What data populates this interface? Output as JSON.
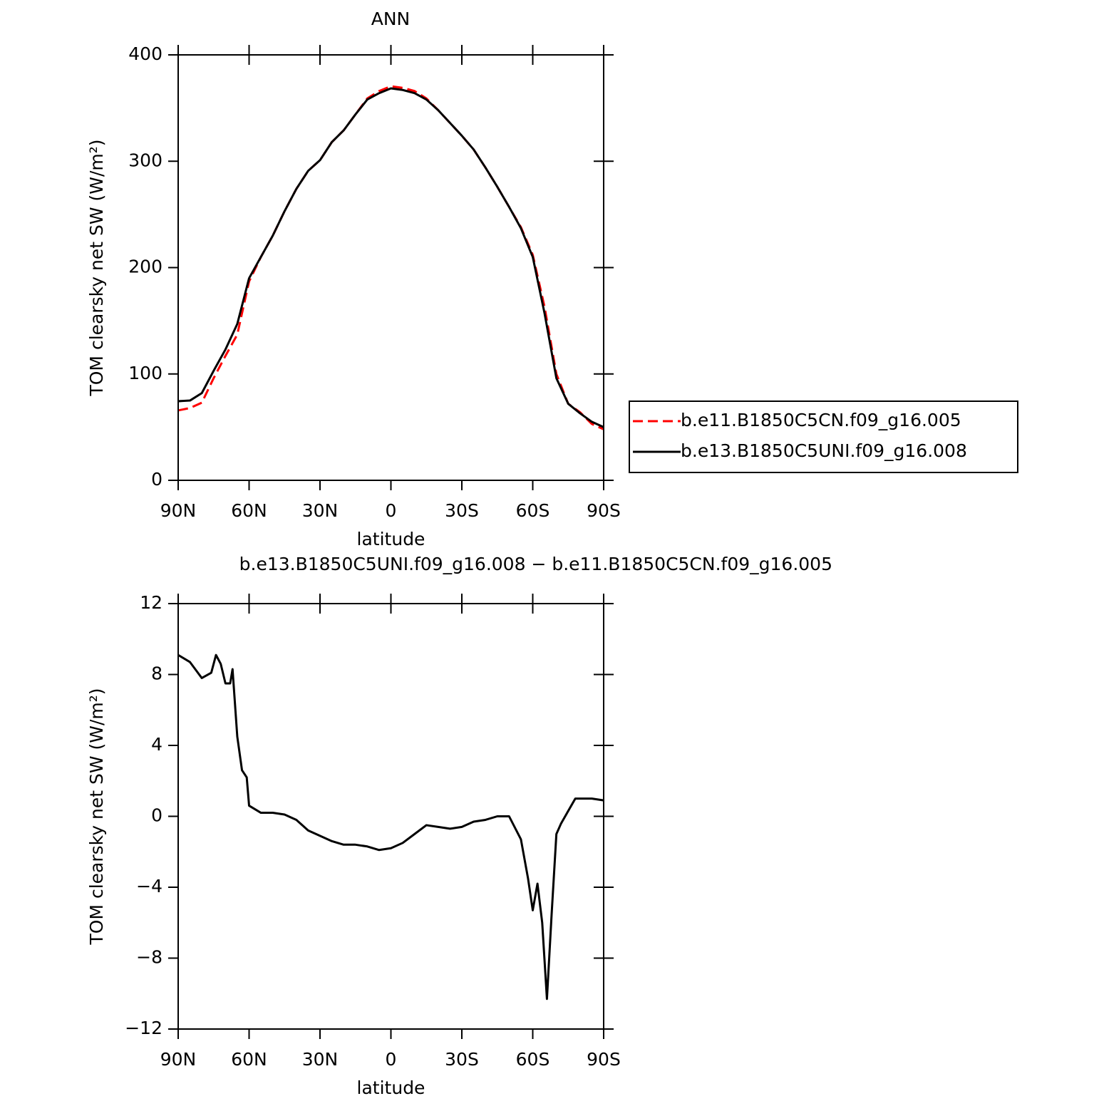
{
  "chart_data": [
    {
      "type": "line",
      "title": "ANN",
      "xlabel": "latitude",
      "ylabel": "TOM clearsky net SW (W/m²)",
      "x": [
        90,
        85,
        80,
        75,
        70,
        65,
        60,
        55,
        50,
        45,
        40,
        35,
        30,
        25,
        20,
        15,
        10,
        5,
        0,
        -5,
        -10,
        -15,
        -20,
        -25,
        -30,
        -35,
        -40,
        -45,
        -50,
        -55,
        -60,
        -65,
        -70,
        -75,
        -80,
        -85,
        -90
      ],
      "xlim": [
        90,
        -90
      ],
      "xticks": [
        {
          "value": 90,
          "label": "90N"
        },
        {
          "value": 60,
          "label": "60N"
        },
        {
          "value": 30,
          "label": "30N"
        },
        0,
        {
          "value": -30,
          "label": "30S"
        },
        {
          "value": -60,
          "label": "60S"
        },
        {
          "value": -90,
          "label": "90S"
        }
      ],
      "ylim": [
        0,
        400
      ],
      "yticks": [
        0,
        100,
        200,
        300,
        400
      ],
      "legend": "right",
      "series": [
        {
          "name": "b.e11.B1850C5CN.f09_g16.005",
          "color": "#ff0000",
          "dashed": true,
          "values": [
            65.7,
            68,
            73,
            96,
            117,
            137,
            187,
            210,
            230,
            253,
            274,
            291,
            301,
            318,
            329,
            344,
            359,
            366,
            370.5,
            369,
            366,
            359,
            348,
            336,
            324,
            311,
            294,
            276,
            257,
            238,
            212,
            163,
            100,
            72,
            64,
            53,
            48
          ]
        },
        {
          "name": "b.e13.B1850C5UNI.f09_g16.008",
          "color": "#000000",
          "dashed": false,
          "values": [
            74.4,
            75,
            82,
            103,
            123,
            147,
            190,
            210,
            230,
            253,
            274,
            291,
            301,
            318,
            329,
            344,
            358,
            364,
            368.5,
            367,
            364,
            358,
            348,
            336,
            324,
            311,
            294,
            276,
            257,
            237,
            210,
            157,
            96,
            72,
            63,
            55,
            50
          ]
        }
      ]
    },
    {
      "type": "line",
      "title": "b.e13.B1850C5UNI.f09_g16.008 − b.e11.B1850C5CN.f09_g16.005",
      "xlabel": "latitude",
      "ylabel": "TOM clearsky net SW (W/m²)",
      "x": [
        90,
        85,
        80,
        76,
        74,
        72,
        70,
        68,
        67,
        65,
        63,
        61,
        60,
        55,
        50,
        45,
        40,
        35,
        30,
        25,
        20,
        15,
        10,
        5,
        0,
        -5,
        -10,
        -15,
        -20,
        -25,
        -30,
        -35,
        -40,
        -45,
        -50,
        -55,
        -58,
        -60,
        -62,
        -64,
        -66,
        -68,
        -70,
        -72,
        -75,
        -78,
        -80,
        -85,
        -90
      ],
      "xlim": [
        90,
        -90
      ],
      "xticks": [
        {
          "value": 90,
          "label": "90N"
        },
        {
          "value": 60,
          "label": "60N"
        },
        {
          "value": 30,
          "label": "30N"
        },
        0,
        {
          "value": -30,
          "label": "30S"
        },
        {
          "value": -60,
          "label": "60S"
        },
        {
          "value": -90,
          "label": "90S"
        }
      ],
      "ylim": [
        -12,
        12
      ],
      "yticks": [
        {
          "value": -12,
          "label": "−12"
        },
        {
          "value": -8,
          "label": "−8"
        },
        {
          "value": -4,
          "label": "−4"
        },
        0,
        4,
        8,
        12
      ],
      "series": [
        {
          "color": "#000000",
          "dashed": false,
          "values": [
            9.1,
            8.7,
            7.8,
            8.1,
            9.1,
            8.6,
            7.5,
            7.5,
            8.3,
            4.5,
            2.6,
            2.2,
            0.6,
            0.2,
            0.2,
            0.1,
            -0.2,
            -0.8,
            -1.1,
            -1.4,
            -1.6,
            -1.6,
            -1.7,
            -1.9,
            -1.8,
            -1.5,
            -1.0,
            -0.5,
            -0.6,
            -0.7,
            -0.6,
            -0.3,
            -0.2,
            0.0,
            0.0,
            -1.3,
            -3.5,
            -5.3,
            -3.8,
            -6.0,
            -10.3,
            -5.5,
            -1.0,
            -0.4,
            0.3,
            1.0,
            1.0,
            1.0,
            0.9
          ]
        }
      ]
    }
  ]
}
